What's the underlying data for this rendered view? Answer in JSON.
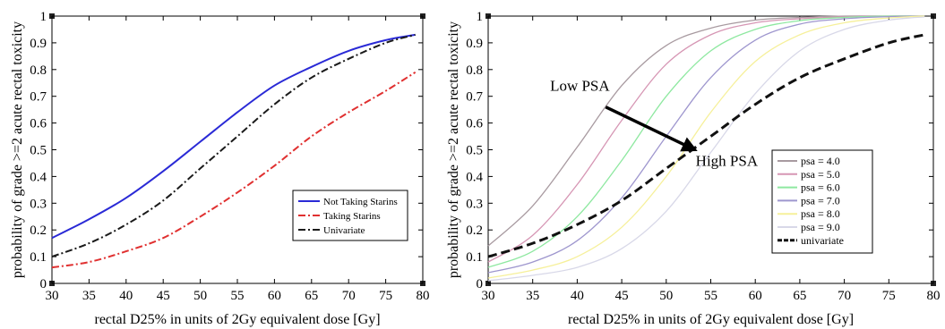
{
  "chart_data": [
    {
      "type": "line",
      "title": "",
      "xlabel": "rectal D25% in units of 2Gy equivalent dose [Gy]",
      "ylabel": "probability of grade >=2 acute rectal toxicity",
      "xlim": [
        30,
        80
      ],
      "ylim": [
        0,
        1
      ],
      "xticks": [
        "30",
        "35",
        "40",
        "45",
        "50",
        "55",
        "60",
        "65",
        "70",
        "75",
        "80"
      ],
      "yticks": [
        "0",
        "0.1",
        "0.2",
        "0.3",
        "0.4",
        "0.5",
        "0.6",
        "0.7",
        "0.8",
        "0.9",
        "1"
      ],
      "grid": false,
      "legend": "lower-right",
      "x": [
        30,
        35,
        40,
        45,
        50,
        55,
        60,
        65,
        70,
        75,
        79
      ],
      "series": [
        {
          "name": "Not Taking Starins",
          "color": "#2a2ad6",
          "dash": "solid",
          "values": [
            0.17,
            0.24,
            0.32,
            0.42,
            0.53,
            0.64,
            0.74,
            0.81,
            0.87,
            0.91,
            0.93
          ]
        },
        {
          "name": "Taking Starins",
          "color": "#e03030",
          "dash": "dashdot",
          "values": [
            0.06,
            0.08,
            0.12,
            0.17,
            0.25,
            0.34,
            0.44,
            0.55,
            0.64,
            0.72,
            0.79
          ]
        },
        {
          "name": "Univariate",
          "color": "#1a1a1a",
          "dash": "dashdot",
          "values": [
            0.1,
            0.15,
            0.22,
            0.31,
            0.43,
            0.55,
            0.67,
            0.77,
            0.84,
            0.9,
            0.93
          ]
        }
      ],
      "annotations": []
    },
    {
      "type": "line",
      "title": "",
      "xlabel": "rectal D25% in units of 2Gy equivalent dose [Gy]",
      "ylabel": "probability of grade >=2 acute rectal toxicity",
      "xlim": [
        30,
        80
      ],
      "ylim": [
        0,
        1
      ],
      "xticks": [
        "30",
        "35",
        "40",
        "45",
        "50",
        "55",
        "60",
        "65",
        "70",
        "75",
        "80"
      ],
      "yticks": [
        "0",
        "0.1",
        "0.2",
        "0.3",
        "0.4",
        "0.5",
        "0.6",
        "0.7",
        "0.8",
        "0.9",
        "1"
      ],
      "grid": false,
      "legend": "right",
      "x": [
        30,
        35,
        40,
        45,
        50,
        55,
        60,
        65,
        70,
        75,
        79
      ],
      "series": [
        {
          "name": "psa = 4.0",
          "color": "#a89aa0",
          "dash": "solid",
          "values": [
            0.14,
            0.29,
            0.51,
            0.74,
            0.89,
            0.955,
            0.985,
            0.995,
            1.0,
            1.0,
            1.0
          ]
        },
        {
          "name": "psa = 5.0",
          "color": "#d696b4",
          "dash": "solid",
          "values": [
            0.08,
            0.18,
            0.37,
            0.61,
            0.82,
            0.93,
            0.975,
            0.99,
            0.997,
            1.0,
            1.0
          ]
        },
        {
          "name": "psa = 6.0",
          "color": "#8ee8a0",
          "dash": "solid",
          "values": [
            0.06,
            0.12,
            0.25,
            0.46,
            0.7,
            0.87,
            0.95,
            0.983,
            0.995,
            1.0,
            1.0
          ]
        },
        {
          "name": "psa = 7.0",
          "color": "#9e96ce",
          "dash": "solid",
          "values": [
            0.04,
            0.08,
            0.16,
            0.32,
            0.55,
            0.77,
            0.91,
            0.97,
            0.99,
            0.998,
            1.0
          ]
        },
        {
          "name": "psa = 8.0",
          "color": "#f6f09a",
          "dash": "solid",
          "values": [
            0.02,
            0.05,
            0.1,
            0.21,
            0.4,
            0.64,
            0.83,
            0.93,
            0.975,
            0.993,
            1.0
          ]
        },
        {
          "name": "psa = 9.0",
          "color": "#d8d8e8",
          "dash": "solid",
          "values": [
            0.01,
            0.03,
            0.06,
            0.13,
            0.27,
            0.49,
            0.71,
            0.87,
            0.95,
            0.985,
            0.997
          ]
        },
        {
          "name": "univariate",
          "color": "#111111",
          "dash": "dash",
          "values": [
            0.1,
            0.15,
            0.22,
            0.31,
            0.43,
            0.55,
            0.67,
            0.77,
            0.84,
            0.9,
            0.93
          ]
        }
      ],
      "annotations": [
        {
          "text": "Low PSA",
          "x": 40.3,
          "y": 0.72
        },
        {
          "text": "High PSA",
          "x": 56.8,
          "y": 0.44
        }
      ],
      "arrow": {
        "from": [
          43.2,
          0.66
        ],
        "to": [
          53.2,
          0.5
        ]
      }
    }
  ]
}
